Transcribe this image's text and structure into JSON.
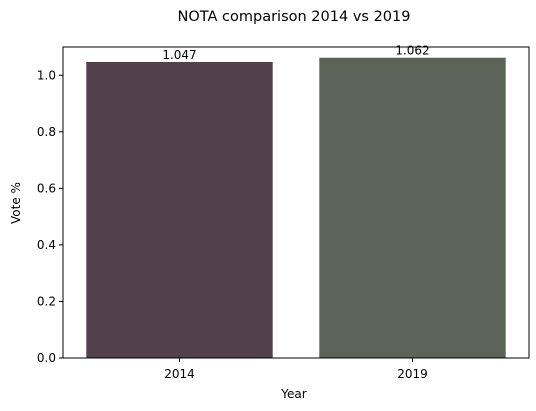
{
  "chart_data": {
    "type": "bar",
    "title": "NOTA comparison 2014 vs 2019",
    "xlabel": "Year",
    "ylabel": "Vote %",
    "categories": [
      "2014",
      "2019"
    ],
    "values": [
      1.047,
      1.062
    ],
    "data_labels": [
      "1.047",
      "1.062"
    ],
    "colors": [
      "#52404d",
      "#5b6457"
    ],
    "ylim": [
      0,
      1.1
    ],
    "yticks": [
      0.0,
      0.2,
      0.4,
      0.6,
      0.8,
      1.0
    ],
    "ytick_labels": [
      "0.0",
      "0.2",
      "0.4",
      "0.6",
      "0.8",
      "1.0"
    ],
    "grid": false,
    "legend": "none"
  }
}
